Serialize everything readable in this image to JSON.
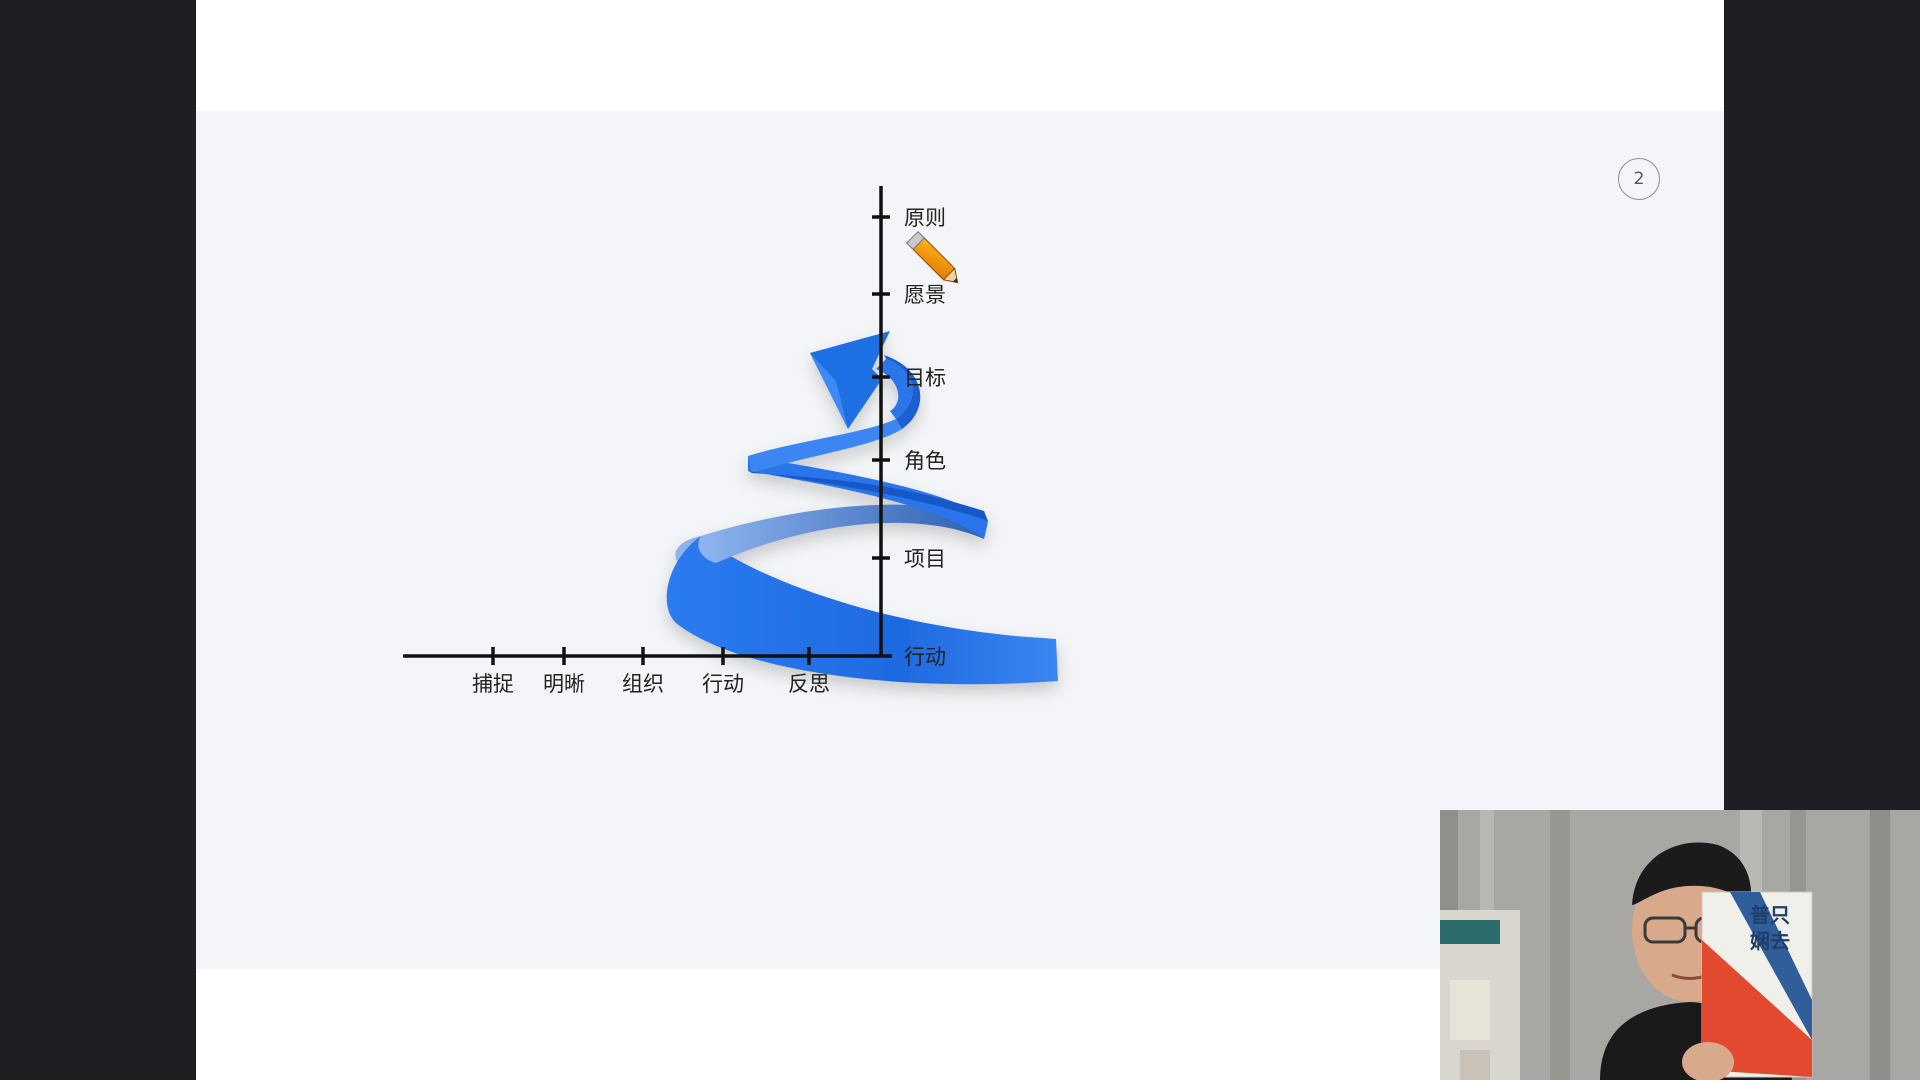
{
  "slide": {
    "page_number": "2"
  },
  "diagram": {
    "y_axis_labels": [
      "原则",
      "愿景",
      "目标",
      "角色",
      "项目",
      "行动"
    ],
    "x_axis_labels": [
      "捕捉",
      "明晰",
      "组织",
      "行动",
      "反思"
    ],
    "spiral_color": "#1f6fe3",
    "arrow_direction": "upward"
  },
  "overlay": {
    "cursor_icon": "pencil-icon"
  },
  "webcam": {
    "book_title_line1": "普只",
    "book_title_line2": "娴去"
  }
}
